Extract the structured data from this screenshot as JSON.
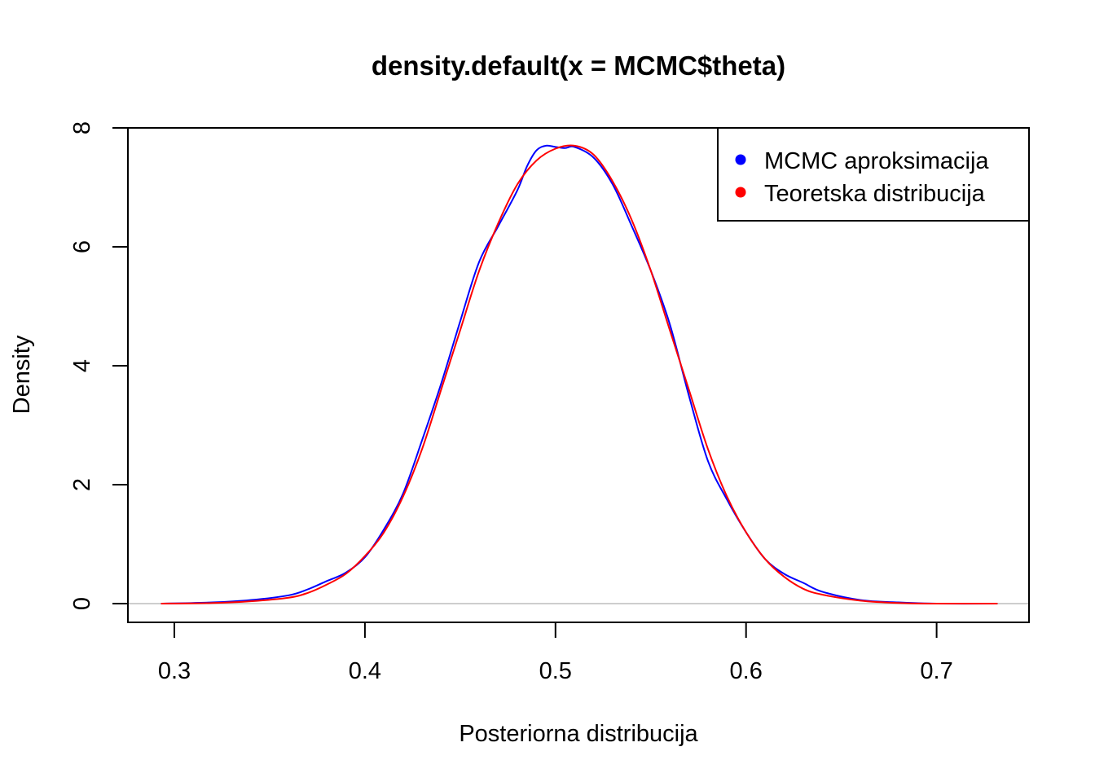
{
  "chart_data": {
    "type": "line",
    "title": "density.default(x = MCMC$theta)",
    "xlabel": "Posteriorna distribucija",
    "ylabel": "Density",
    "xlim": [
      0.28,
      0.75
    ],
    "ylim": [
      0,
      8
    ],
    "x_ticks": [
      "0.3",
      "0.4",
      "0.5",
      "0.6",
      "0.7"
    ],
    "y_ticks": [
      "0",
      "2",
      "4",
      "6",
      "8"
    ],
    "baseline": 0,
    "legend": {
      "position": "top-right"
    },
    "series": [
      {
        "name": "MCMC aproksimacija",
        "color": "#0000FF",
        "x": [
          0.293,
          0.32,
          0.34,
          0.36,
          0.37,
          0.38,
          0.39,
          0.4,
          0.41,
          0.42,
          0.43,
          0.44,
          0.45,
          0.46,
          0.47,
          0.48,
          0.485,
          0.49,
          0.495,
          0.5,
          0.505,
          0.51,
          0.52,
          0.53,
          0.54,
          0.55,
          0.56,
          0.57,
          0.58,
          0.59,
          0.6,
          0.61,
          0.62,
          0.63,
          0.64,
          0.66,
          0.68,
          0.7,
          0.732
        ],
        "y": [
          0.0,
          0.02,
          0.06,
          0.14,
          0.24,
          0.38,
          0.52,
          0.78,
          1.25,
          1.85,
          2.75,
          3.7,
          4.75,
          5.75,
          6.35,
          6.95,
          7.35,
          7.62,
          7.7,
          7.68,
          7.66,
          7.68,
          7.5,
          7.05,
          6.35,
          5.6,
          4.7,
          3.5,
          2.4,
          1.75,
          1.2,
          0.75,
          0.5,
          0.35,
          0.2,
          0.06,
          0.02,
          0.0,
          0.0
        ]
      },
      {
        "name": "Teoretska distribucija",
        "color": "#FF0000",
        "x": [
          0.293,
          0.32,
          0.34,
          0.36,
          0.37,
          0.38,
          0.39,
          0.4,
          0.41,
          0.42,
          0.43,
          0.44,
          0.45,
          0.46,
          0.47,
          0.48,
          0.49,
          0.5,
          0.51,
          0.52,
          0.53,
          0.54,
          0.55,
          0.56,
          0.57,
          0.58,
          0.59,
          0.6,
          0.61,
          0.62,
          0.63,
          0.64,
          0.66,
          0.68,
          0.7,
          0.732
        ],
        "y": [
          0.0,
          0.01,
          0.04,
          0.1,
          0.18,
          0.32,
          0.5,
          0.8,
          1.2,
          1.8,
          2.6,
          3.6,
          4.6,
          5.6,
          6.4,
          7.05,
          7.45,
          7.65,
          7.7,
          7.55,
          7.1,
          6.45,
          5.6,
          4.6,
          3.6,
          2.6,
          1.8,
          1.2,
          0.75,
          0.45,
          0.25,
          0.15,
          0.05,
          0.01,
          0.0,
          0.0
        ]
      }
    ]
  }
}
